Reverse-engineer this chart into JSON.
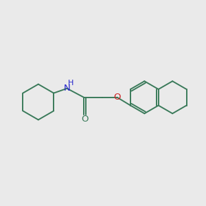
{
  "bg_color": "#eaeaea",
  "bond_color": "#3a7a5a",
  "n_color": "#2222cc",
  "o_color": "#cc2222",
  "bond_width": 1.4,
  "fig_size": [
    3.0,
    3.0
  ],
  "dpi": 100,
  "xlim": [
    0,
    10
  ],
  "ylim": [
    0,
    10
  ]
}
